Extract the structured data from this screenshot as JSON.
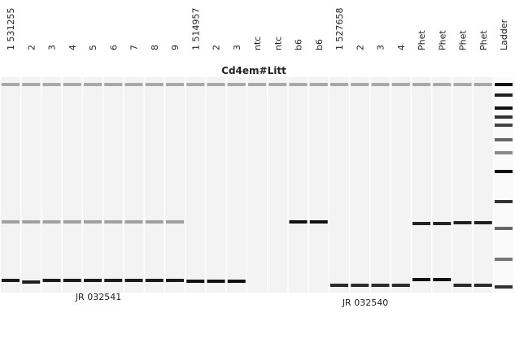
{
  "title": "Cd4em#Litt",
  "lanes": [
    "1 531255",
    "2",
    "3",
    "4",
    "5",
    "6",
    "7",
    "8",
    "9",
    "1 514957",
    "2",
    "3",
    "ntc",
    "ntc",
    "b6",
    "b6",
    "1 527658",
    "2",
    "3",
    "4",
    "Phet",
    "Phet",
    "Phet",
    "Phet",
    "Ladder"
  ],
  "notes": [
    "JR 032541",
    "JR 032540"
  ]
}
